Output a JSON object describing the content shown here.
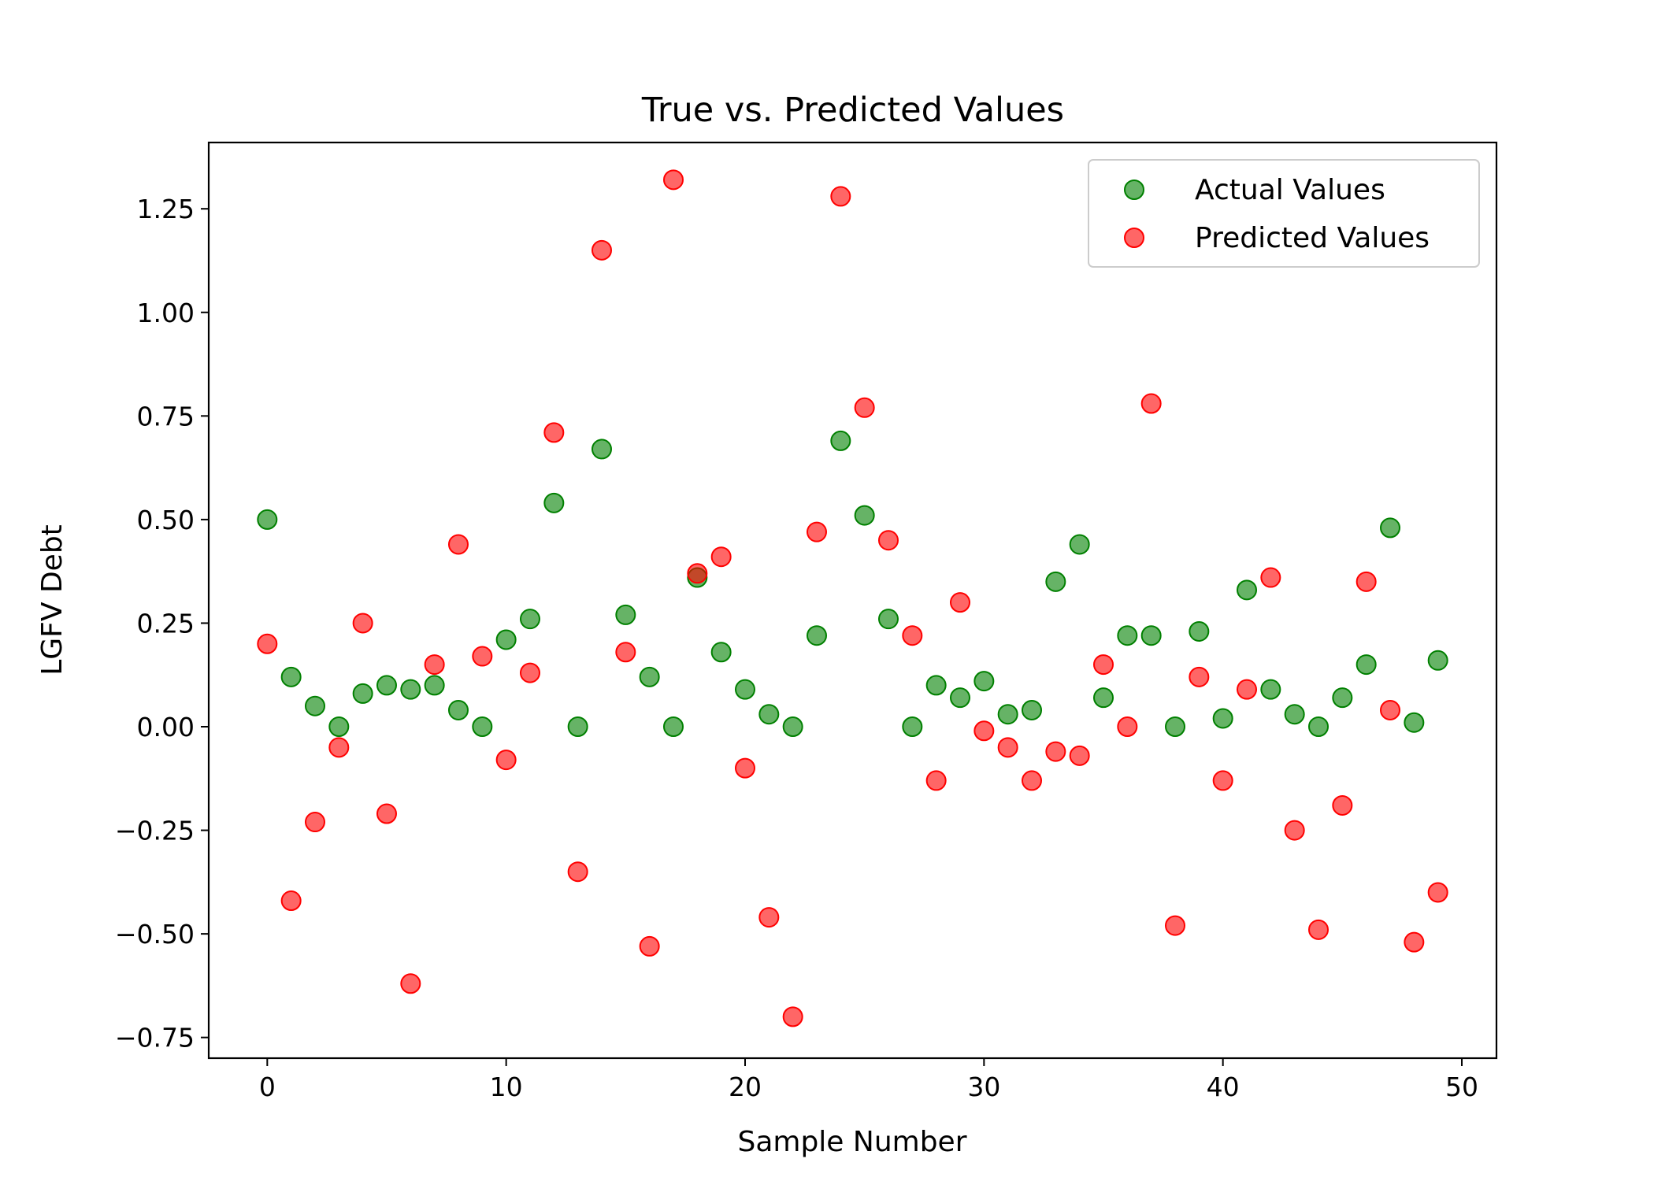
{
  "chart_data": {
    "type": "scatter",
    "title": "True vs. Predicted Values",
    "xlabel": "Sample Number",
    "ylabel": "LGFV Debt",
    "xlim": [
      -2.45,
      51.45
    ],
    "ylim": [
      -0.8,
      1.41
    ],
    "xticks": [
      0,
      10,
      20,
      30,
      40,
      50
    ],
    "yticks": [
      -0.75,
      -0.5,
      -0.25,
      0.0,
      0.25,
      0.5,
      0.75,
      1.0,
      1.25
    ],
    "ytick_labels": [
      "−0.75",
      "−0.50",
      "−0.25",
      "0.00",
      "0.25",
      "0.50",
      "0.75",
      "1.00",
      "1.25"
    ],
    "grid": false,
    "legend_position": "top-right",
    "series": [
      {
        "name": "Actual Values",
        "color": "#008000",
        "x": [
          0,
          1,
          2,
          3,
          4,
          5,
          6,
          7,
          8,
          9,
          10,
          11,
          12,
          13,
          14,
          15,
          16,
          17,
          18,
          19,
          20,
          21,
          22,
          23,
          24,
          25,
          26,
          27,
          28,
          29,
          30,
          31,
          32,
          33,
          34,
          35,
          36,
          37,
          38,
          39,
          40,
          41,
          42,
          43,
          44,
          45,
          46,
          47,
          48,
          49
        ],
        "y": [
          0.5,
          0.12,
          0.05,
          0.0,
          0.08,
          0.1,
          0.09,
          0.1,
          0.04,
          0.0,
          0.21,
          0.26,
          0.54,
          0.0,
          0.67,
          0.27,
          0.12,
          0.0,
          0.36,
          0.18,
          0.09,
          0.03,
          0.0,
          0.22,
          0.69,
          0.51,
          0.26,
          0.0,
          0.1,
          0.07,
          0.11,
          0.03,
          0.04,
          0.35,
          0.44,
          0.07,
          0.22,
          0.22,
          0.0,
          0.23,
          0.02,
          0.33,
          0.09,
          0.03,
          0.0,
          0.07,
          0.15,
          0.48,
          0.01,
          0.16
        ]
      },
      {
        "name": "Predicted Values",
        "color": "#ff0000",
        "x": [
          0,
          1,
          2,
          3,
          4,
          5,
          6,
          7,
          8,
          9,
          10,
          11,
          12,
          13,
          14,
          15,
          16,
          17,
          18,
          19,
          20,
          21,
          22,
          23,
          24,
          25,
          26,
          27,
          28,
          29,
          30,
          31,
          32,
          33,
          34,
          35,
          36,
          37,
          38,
          39,
          40,
          41,
          42,
          43,
          44,
          45,
          46,
          47,
          48,
          49
        ],
        "y": [
          0.2,
          -0.42,
          -0.23,
          -0.05,
          0.25,
          -0.21,
          -0.62,
          0.15,
          0.44,
          0.17,
          -0.08,
          0.13,
          0.71,
          -0.35,
          1.15,
          0.18,
          -0.53,
          1.32,
          0.37,
          0.41,
          -0.1,
          -0.46,
          -0.7,
          0.47,
          1.28,
          0.77,
          0.45,
          0.22,
          -0.13,
          0.3,
          -0.01,
          -0.05,
          -0.13,
          -0.06,
          -0.07,
          0.15,
          0.0,
          0.78,
          -0.48,
          0.12,
          -0.13,
          0.09,
          0.36,
          -0.25,
          -0.49,
          -0.19,
          0.35,
          0.04,
          -0.52,
          -0.4
        ]
      }
    ]
  }
}
